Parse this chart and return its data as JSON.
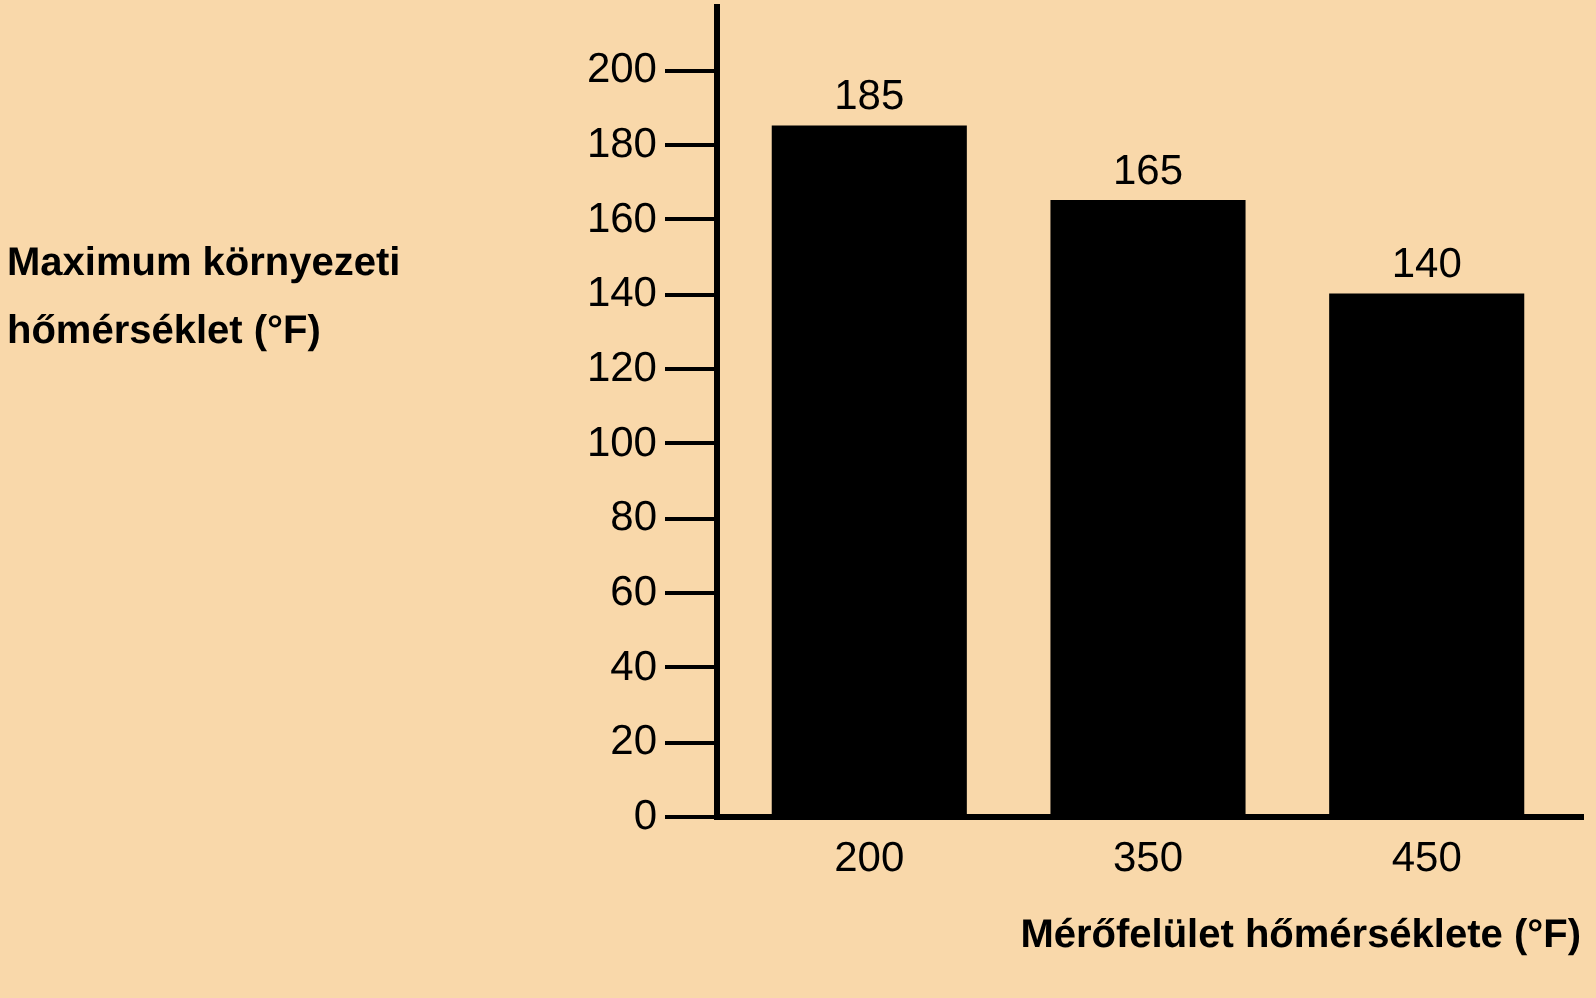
{
  "chart_data": {
    "type": "bar",
    "xlabel": "Mérőfelület hőmérséklete (°F)",
    "ylabel": "Maximum környezeti hőmérséklet (°F)",
    "categories": [
      "200",
      "350",
      "450"
    ],
    "values": [
      185,
      165,
      140
    ],
    "color": "#000000",
    "data_labels": true,
    "ylim": [
      0,
      217
    ],
    "yticks": [
      0,
      20,
      40,
      60,
      80,
      100,
      120,
      140,
      160,
      180,
      200
    ],
    "grid": false
  }
}
